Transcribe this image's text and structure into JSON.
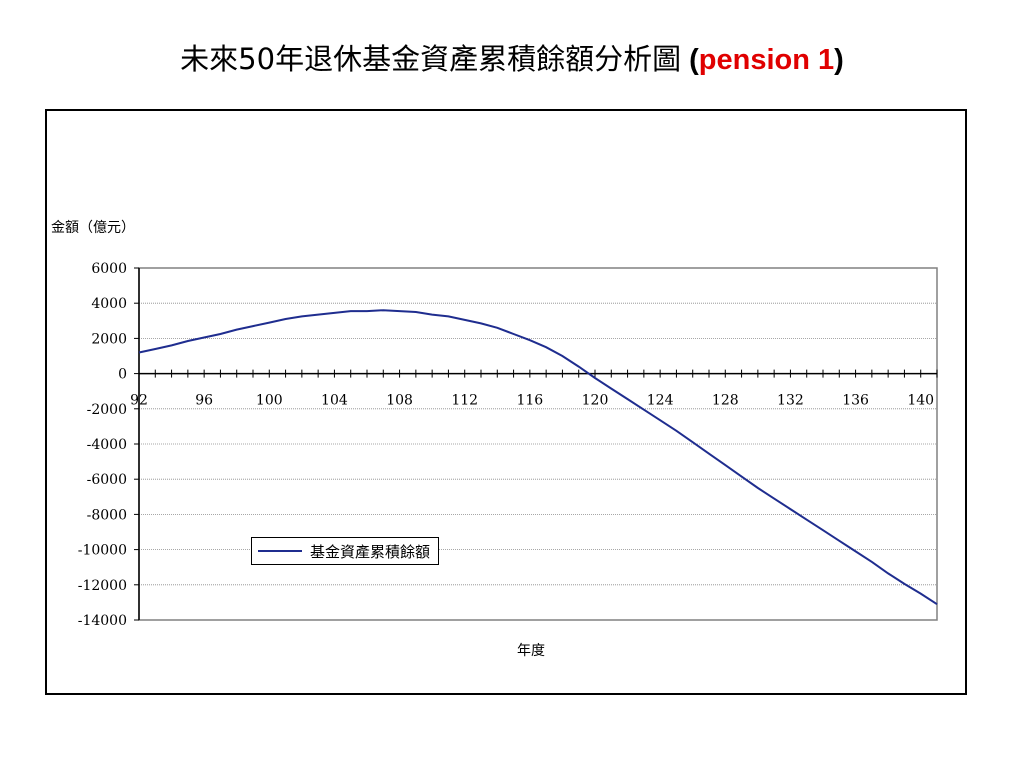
{
  "title": {
    "main": "未來50年退休基金資產累積餘額分析圖",
    "paren_open": " (",
    "accent": "pension 1",
    "paren_close": ")",
    "accent_color": "#e00000"
  },
  "chart_data": {
    "type": "line",
    "ylabel": "金額（億元）",
    "xlabel": "年度",
    "xlim": [
      92,
      141
    ],
    "ylim": [
      -14000,
      6000
    ],
    "xticks": [
      92,
      96,
      100,
      104,
      108,
      112,
      116,
      120,
      124,
      128,
      132,
      136,
      140
    ],
    "yticks": [
      6000,
      4000,
      2000,
      0,
      -2000,
      -4000,
      -6000,
      -8000,
      -10000,
      -12000,
      -14000
    ],
    "grid": true,
    "legend_position": "lower-left",
    "series": [
      {
        "name": "基金資產累積餘額",
        "color": "#1f2d8f",
        "x": [
          92,
          93,
          94,
          95,
          96,
          97,
          98,
          99,
          100,
          101,
          102,
          103,
          104,
          105,
          106,
          107,
          108,
          109,
          110,
          111,
          112,
          113,
          114,
          115,
          116,
          117,
          118,
          119,
          120,
          121,
          122,
          123,
          124,
          125,
          126,
          127,
          128,
          129,
          130,
          131,
          132,
          133,
          134,
          135,
          136,
          137,
          138,
          139,
          140,
          141
        ],
        "y": [
          1200,
          1400,
          1600,
          1850,
          2050,
          2250,
          2500,
          2700,
          2900,
          3100,
          3250,
          3350,
          3450,
          3550,
          3550,
          3600,
          3550,
          3500,
          3350,
          3250,
          3050,
          2850,
          2600,
          2250,
          1900,
          1500,
          1000,
          400,
          -250,
          -850,
          -1450,
          -2050,
          -2650,
          -3250,
          -3900,
          -4550,
          -5200,
          -5850,
          -6500,
          -7100,
          -7700,
          -8300,
          -8900,
          -9500,
          -10100,
          -10700,
          -11350,
          -11950,
          -12500,
          -13100
        ]
      }
    ]
  }
}
